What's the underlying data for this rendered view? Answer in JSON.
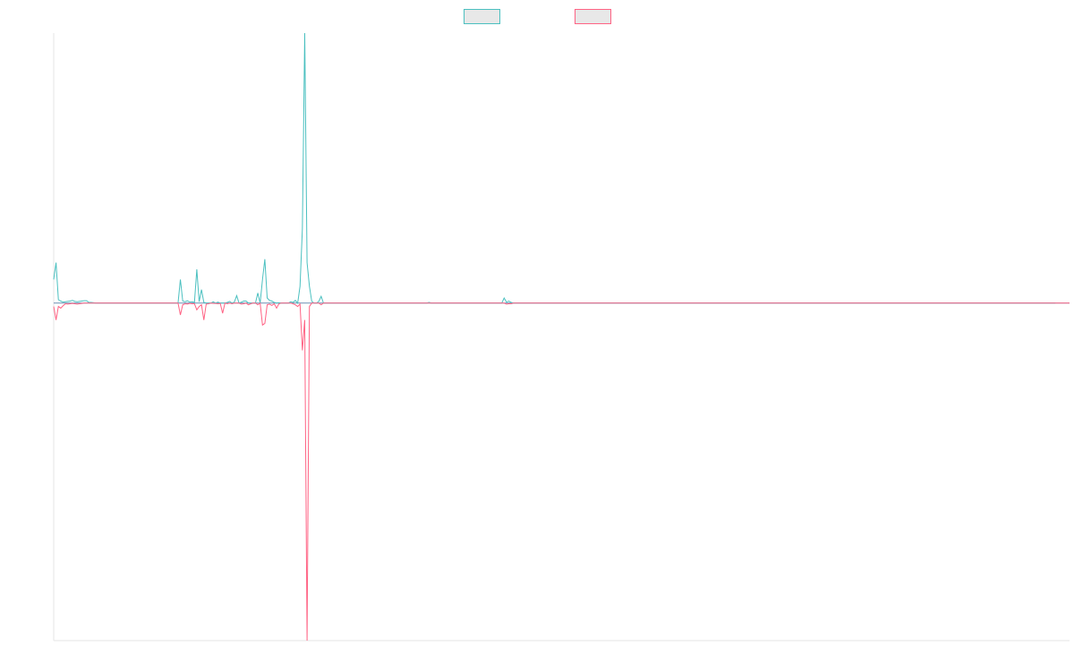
{
  "chart_data": {
    "type": "line",
    "title": "",
    "xlabel": "",
    "ylabel": "",
    "grid": false,
    "legend": "top-center",
    "ylim": [
      -100,
      80
    ],
    "series": [
      {
        "name": "",
        "color": "#4bc0c0",
        "fill": "#e8e8e8",
        "values": [
          7,
          12,
          1,
          0.6,
          0.3,
          0.4,
          0.5,
          0.6,
          0.8,
          0.5,
          0.4,
          0.5,
          0.6,
          0.7,
          0.7,
          0.2,
          0.2,
          0.1,
          0,
          0,
          0,
          0,
          0,
          0,
          0,
          0,
          0,
          0,
          0,
          0,
          0,
          0,
          0,
          0,
          0,
          0,
          0,
          0,
          0,
          0,
          0,
          0,
          0,
          0,
          0,
          0,
          0,
          0,
          0,
          0,
          0,
          0,
          0,
          0,
          7,
          0.6,
          0.4,
          0.7,
          0.3,
          0.4,
          0.2,
          10,
          0.4,
          4,
          0.2,
          0,
          0,
          0,
          0.4,
          0,
          0.3,
          0,
          0,
          0,
          0.2,
          0.5,
          0,
          0.3,
          2.2,
          0,
          0.3,
          0.6,
          0.6,
          0,
          0,
          0,
          0,
          3,
          0,
          7,
          13,
          1.5,
          0.8,
          0.6,
          0.2,
          0,
          0.1,
          0,
          0,
          0,
          0,
          0.4,
          0.2,
          0.8,
          0,
          5,
          22,
          80,
          12,
          5,
          0.5,
          0,
          0,
          0.5,
          2,
          0,
          0,
          0,
          0,
          0,
          0,
          0,
          0,
          0,
          0,
          0,
          0,
          0,
          0,
          0,
          0,
          0,
          0,
          0,
          0,
          0,
          0,
          0,
          0,
          0,
          0,
          0,
          0,
          0,
          0,
          0,
          0,
          0,
          0,
          0,
          0,
          0,
          0,
          0,
          0,
          0,
          0,
          0,
          0,
          0,
          0.2,
          0,
          0,
          0,
          0,
          0,
          0,
          0,
          0,
          0,
          0,
          0,
          0,
          0,
          0,
          0,
          0,
          0,
          0,
          0,
          0,
          0,
          0,
          0,
          0,
          0,
          0,
          0,
          0,
          0,
          0,
          0,
          1.5,
          0.3,
          0.6,
          0.2,
          0,
          0,
          0,
          0,
          0,
          0,
          0,
          0,
          0,
          0,
          0,
          0,
          0,
          0,
          0,
          0,
          0,
          0,
          0,
          0,
          0,
          0,
          0,
          0,
          0,
          0,
          0,
          0,
          0,
          0,
          0,
          0,
          0,
          0,
          0,
          0,
          0,
          0,
          0,
          0,
          0,
          0,
          0,
          0,
          0,
          0,
          0,
          0,
          0,
          0,
          0,
          0,
          0,
          0,
          0,
          0,
          0,
          0,
          0,
          0,
          0,
          0,
          0,
          0,
          0,
          0,
          0,
          0,
          0,
          0,
          0,
          0,
          0,
          0,
          0,
          0,
          0,
          0,
          0,
          0,
          0,
          0,
          0,
          0,
          0,
          0,
          0,
          0,
          0,
          0,
          0,
          0,
          0,
          0,
          0,
          0,
          0,
          0,
          0,
          0,
          0,
          0,
          0,
          0,
          0,
          0,
          0,
          0,
          0,
          0,
          0,
          0,
          0,
          0,
          0,
          0,
          0,
          0,
          0,
          0,
          0,
          0,
          0,
          0,
          0,
          0,
          0,
          0,
          0,
          0,
          0,
          0,
          0,
          0,
          0,
          0,
          0,
          0,
          0,
          0,
          0,
          0,
          0,
          0,
          0,
          0,
          0,
          0,
          0,
          0,
          0,
          0,
          0,
          0,
          0,
          0,
          0,
          0,
          0,
          0,
          0,
          0,
          0,
          0,
          0,
          0,
          0,
          0,
          0,
          0,
          0,
          0,
          0,
          0,
          0,
          0,
          0,
          0,
          0,
          0,
          0,
          0,
          0,
          0,
          0,
          0,
          0,
          0,
          0,
          0,
          0,
          0,
          0,
          0,
          0,
          0,
          0,
          0,
          0,
          0,
          0,
          0,
          0,
          0,
          0,
          0,
          0,
          0,
          0,
          0,
          0,
          0,
          0,
          0,
          0,
          0,
          0,
          0,
          0,
          0,
          0,
          0,
          0,
          0,
          0,
          0,
          0,
          0,
          0,
          0,
          0,
          0
        ]
      },
      {
        "name": "",
        "color": "#ff6384",
        "fill": "#e8e8e8",
        "values": [
          -1,
          -5,
          -1,
          -1.5,
          -0.8,
          -0.2,
          -0.3,
          -0.2,
          -0.1,
          -0.2,
          -0.3,
          -0.2,
          -0.1,
          0,
          0,
          0,
          0,
          0,
          0,
          0,
          0,
          0,
          0,
          0,
          0,
          0,
          0,
          0,
          0,
          0,
          0,
          0,
          0,
          0,
          0,
          0,
          0,
          0,
          0,
          0,
          0,
          0,
          0,
          0,
          0,
          0,
          0,
          0,
          0,
          0,
          0,
          0,
          0,
          0,
          -3.5,
          -0.5,
          -0.2,
          -0.3,
          -0.1,
          -0.2,
          -0.2,
          -2,
          -1,
          -0.5,
          -5,
          -0.3,
          -0.2,
          0,
          -0.1,
          -0.1,
          -0.2,
          -0.1,
          -3,
          0,
          -0.2,
          0,
          -0.2,
          0,
          0,
          0,
          -0.3,
          -0.2,
          0,
          -0.5,
          -0.2,
          0,
          0,
          -0.5,
          0,
          -6.5,
          -6,
          -0.5,
          -0.3,
          -0.7,
          -0.2,
          -1.5,
          -0.2,
          0,
          0,
          0,
          0,
          0,
          -0.2,
          -0.5,
          -1,
          -0.3,
          -14,
          -5,
          -100,
          -1,
          0,
          0,
          0,
          0,
          -0.5,
          0,
          0,
          0,
          0,
          0,
          0,
          0,
          0,
          0,
          0,
          0,
          0,
          0,
          0,
          0,
          0,
          0,
          0,
          0,
          0,
          0,
          0,
          0,
          0,
          0,
          0,
          0,
          0,
          0,
          0,
          0,
          0,
          0,
          0,
          0,
          0,
          0,
          0,
          0,
          0,
          0,
          0,
          0,
          0,
          0,
          0,
          0,
          0,
          0,
          0,
          0,
          0,
          0,
          0,
          0,
          0,
          0,
          0,
          0,
          0,
          0,
          0,
          0,
          0,
          0,
          0,
          0,
          0,
          0,
          0,
          0,
          0,
          0,
          0,
          0,
          0,
          0,
          0,
          -0.3,
          -0.2,
          -0.2,
          0,
          0,
          0,
          0,
          0,
          0,
          0,
          0,
          0,
          0,
          0,
          0,
          0,
          0,
          0,
          0,
          0,
          0,
          0,
          0,
          0,
          0,
          0,
          0,
          0,
          0,
          0,
          0,
          0,
          0,
          0,
          0,
          0,
          0,
          0,
          0,
          0,
          0,
          0,
          0,
          0,
          0,
          0,
          0,
          0,
          0,
          0,
          0,
          0,
          0,
          0,
          0,
          0,
          0,
          0,
          0,
          0,
          0,
          0,
          0,
          0,
          0,
          0,
          0,
          0,
          0,
          0,
          0,
          0,
          0,
          0,
          0,
          0,
          0,
          0,
          0,
          0,
          0,
          0,
          0,
          0,
          0,
          0,
          0,
          0,
          0,
          0,
          0,
          0,
          0,
          0,
          0,
          0,
          0,
          0,
          0,
          0,
          0,
          0,
          0,
          0,
          0,
          0,
          0,
          0,
          0,
          0,
          0,
          0,
          0,
          0,
          0,
          0,
          0,
          0,
          0,
          0,
          0,
          0,
          0,
          0,
          0,
          0,
          0,
          0,
          0,
          0,
          0,
          0,
          0,
          0,
          0,
          0,
          0,
          0,
          0,
          0,
          0,
          0,
          0,
          0,
          0,
          0,
          0,
          0,
          0,
          0,
          0,
          0,
          0,
          0,
          0,
          0,
          0,
          0,
          0,
          0,
          0,
          0,
          0,
          0,
          0,
          0,
          0,
          0,
          0,
          0,
          0,
          0,
          0,
          0,
          0,
          0,
          0,
          0,
          0,
          0,
          0,
          0,
          0,
          0,
          0,
          0,
          0,
          0,
          0,
          0,
          0,
          0,
          0,
          0,
          0,
          0,
          0,
          0,
          0,
          0,
          0,
          0,
          0,
          0,
          0,
          0,
          0,
          0,
          0,
          0,
          0,
          0,
          0,
          0,
          0,
          0,
          0,
          0,
          0,
          0,
          0,
          0,
          0,
          0,
          0,
          0,
          0,
          0,
          0,
          0,
          0,
          0,
          0,
          0,
          0,
          0,
          0,
          0,
          0,
          0,
          0
        ]
      }
    ],
    "zero_line_color": "#6d8fb3",
    "axis_color": "#e6e6e6"
  }
}
